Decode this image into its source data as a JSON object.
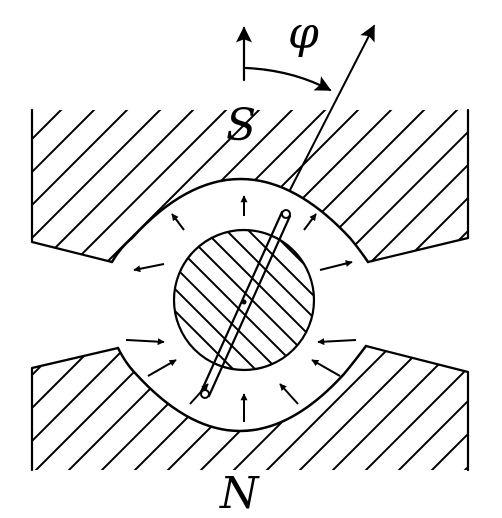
{
  "labels": {
    "south_pole": "S",
    "north_pole": "N",
    "angle": "φ"
  },
  "colors": {
    "stroke": "#000000",
    "background": "#ffffff"
  }
}
